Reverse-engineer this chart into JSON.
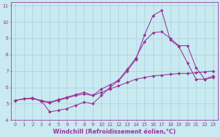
{
  "xlabel": "Windchill (Refroidissement éolien,°C)",
  "bg_color": "#c8eaf0",
  "grid_color": "#a0c8d8",
  "line_color": "#993399",
  "xlim": [
    -0.5,
    23.5
  ],
  "ylim": [
    4,
    11.2
  ],
  "xticks": [
    0,
    1,
    2,
    3,
    4,
    5,
    6,
    7,
    8,
    9,
    10,
    11,
    12,
    13,
    14,
    15,
    16,
    17,
    18,
    19,
    20,
    21,
    22,
    23
  ],
  "yticks": [
    4,
    5,
    6,
    7,
    8,
    9,
    10,
    11
  ],
  "line1_x": [
    0,
    1,
    2,
    3,
    4,
    5,
    6,
    7,
    8,
    9,
    10,
    11,
    12,
    13,
    14,
    15,
    16,
    17,
    18,
    19,
    20,
    21,
    22,
    23
  ],
  "line1_y": [
    5.2,
    5.3,
    5.3,
    5.2,
    4.5,
    4.6,
    4.7,
    4.9,
    5.1,
    5.0,
    5.5,
    6.0,
    6.4,
    7.0,
    7.7,
    9.2,
    10.4,
    10.7,
    8.9,
    8.5,
    7.5,
    6.5,
    6.5,
    6.7
  ],
  "line2_x": [
    0,
    1,
    2,
    3,
    4,
    5,
    6,
    7,
    8,
    9,
    10,
    11,
    12,
    13,
    14,
    15,
    16,
    17,
    18,
    19,
    20,
    21,
    22,
    23
  ],
  "line2_y": [
    5.2,
    5.3,
    5.35,
    5.15,
    5.05,
    5.2,
    5.35,
    5.5,
    5.6,
    5.5,
    5.7,
    5.9,
    6.1,
    6.3,
    6.5,
    6.6,
    6.7,
    6.75,
    6.8,
    6.85,
    6.85,
    6.9,
    6.95,
    7.0
  ],
  "line3_x": [
    0,
    1,
    2,
    3,
    4,
    5,
    6,
    7,
    8,
    9,
    10,
    11,
    12,
    13,
    14,
    15,
    16,
    17,
    18,
    19,
    20,
    21,
    22,
    23
  ],
  "line3_y": [
    5.2,
    5.3,
    5.35,
    5.2,
    5.1,
    5.25,
    5.4,
    5.55,
    5.7,
    5.5,
    5.9,
    6.15,
    6.45,
    7.1,
    7.8,
    8.8,
    9.35,
    9.4,
    9.0,
    8.55,
    8.55,
    7.2,
    6.5,
    6.6
  ],
  "marker": "D",
  "markersize": 2.5,
  "linewidth": 0.8,
  "tick_fontsize": 5,
  "label_fontsize": 6
}
